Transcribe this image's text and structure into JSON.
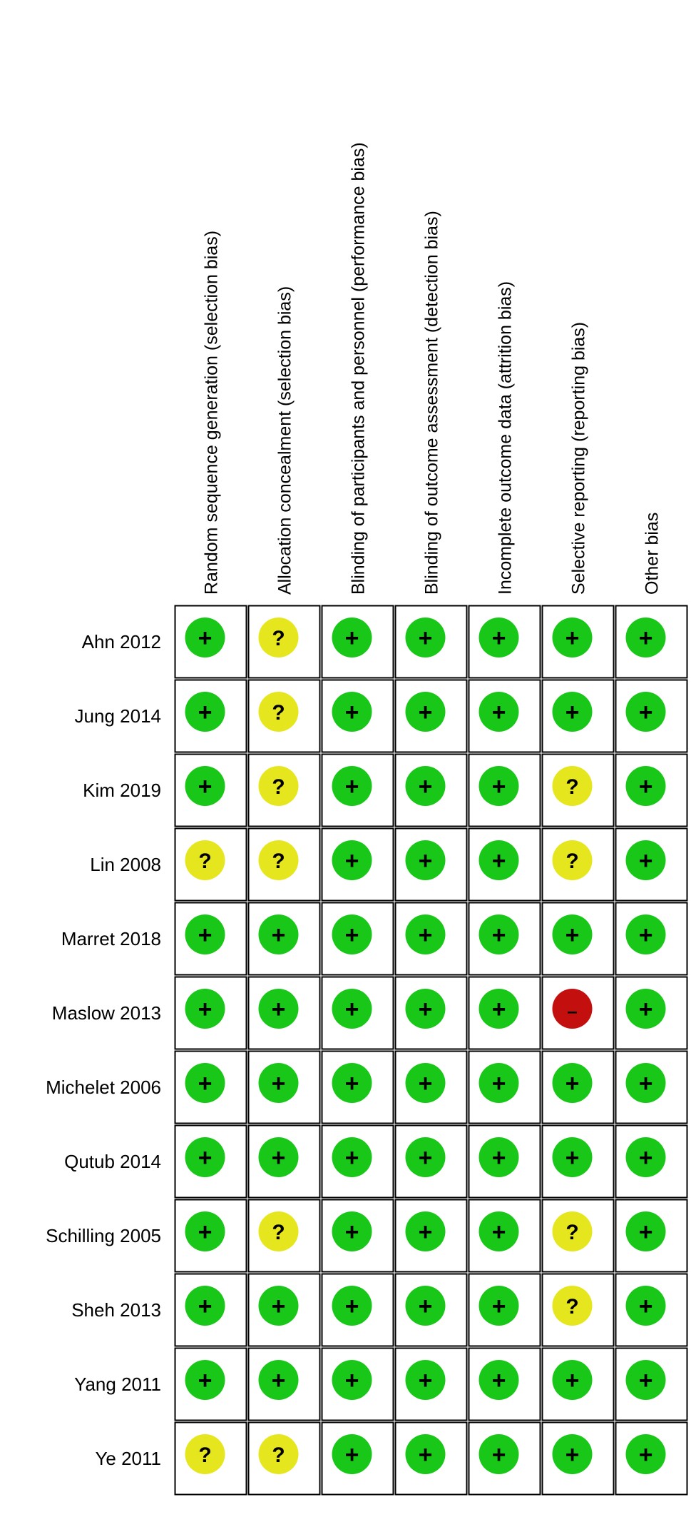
{
  "chart_data": {
    "type": "table",
    "columns": [
      "Random sequence generation (selection bias)",
      "Allocation concealment (selection bias)",
      "Blinding of participants and personnel (performance bias)",
      "Blinding of outcome assessment (detection bias)",
      "Incomplete outcome data (attrition bias)",
      "Selective reporting (reporting bias)",
      "Other bias"
    ],
    "rows": [
      "Ahn 2012",
      "Jung 2014",
      "Kim 2019",
      "Lin 2008",
      "Marret 2018",
      "Maslow 2013",
      "Michelet 2006",
      "Qutub 2014",
      "Schilling 2005",
      "Sheh 2013",
      "Yang 2011",
      "Ye 2011"
    ],
    "values": [
      [
        "low",
        "unclear",
        "low",
        "low",
        "low",
        "low",
        "low"
      ],
      [
        "low",
        "unclear",
        "low",
        "low",
        "low",
        "low",
        "low"
      ],
      [
        "low",
        "unclear",
        "low",
        "low",
        "low",
        "unclear",
        "low"
      ],
      [
        "unclear",
        "unclear",
        "low",
        "low",
        "low",
        "unclear",
        "low"
      ],
      [
        "low",
        "low",
        "low",
        "low",
        "low",
        "low",
        "low"
      ],
      [
        "low",
        "low",
        "low",
        "low",
        "low",
        "high",
        "low"
      ],
      [
        "low",
        "low",
        "low",
        "low",
        "low",
        "low",
        "low"
      ],
      [
        "low",
        "low",
        "low",
        "low",
        "low",
        "low",
        "low"
      ],
      [
        "low",
        "unclear",
        "low",
        "low",
        "low",
        "unclear",
        "low"
      ],
      [
        "low",
        "low",
        "low",
        "low",
        "low",
        "unclear",
        "low"
      ],
      [
        "low",
        "low",
        "low",
        "low",
        "low",
        "low",
        "low"
      ],
      [
        "unclear",
        "unclear",
        "low",
        "low",
        "low",
        "low",
        "low"
      ]
    ],
    "judgements": {
      "low": {
        "symbol": "+",
        "color": "#19c719"
      },
      "unclear": {
        "symbol": "?",
        "color": "#e6e61e"
      },
      "high": {
        "symbol": "–",
        "color": "#c40f0f"
      }
    }
  }
}
